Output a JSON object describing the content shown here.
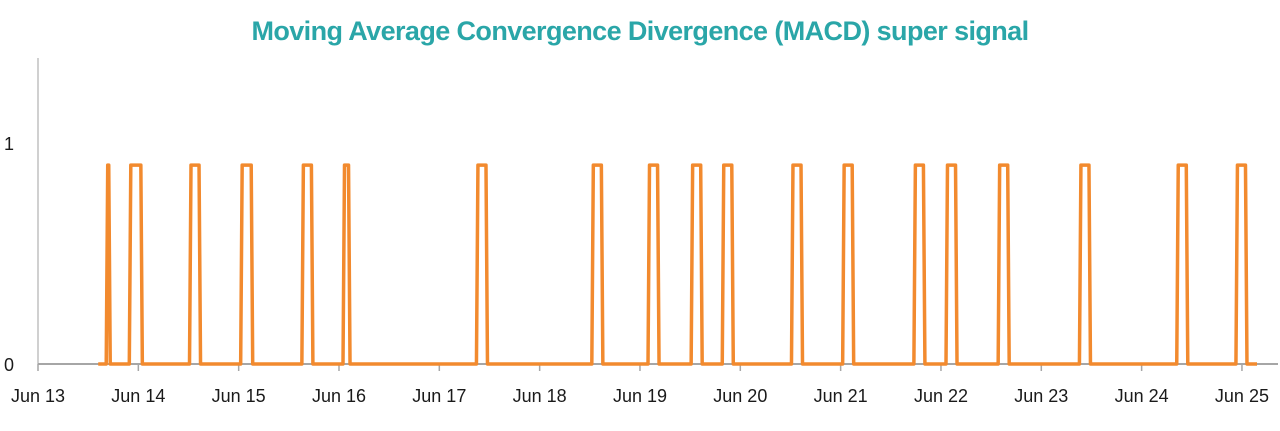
{
  "chart_data": {
    "type": "line",
    "title": "Moving Average Convergence Divergence (MACD) super signal",
    "xlabel": "",
    "ylabel": "",
    "x_tick_labels": [
      "Jun 13",
      "Jun 14",
      "Jun 15",
      "Jun 16",
      "Jun 17",
      "Jun 18",
      "Jun 19",
      "Jun 20",
      "Jun 21",
      "Jun 22",
      "Jun 23",
      "Jun 24",
      "Jun 25"
    ],
    "y_tick_labels": [
      "0",
      "1"
    ],
    "ylim": [
      0,
      1.4
    ],
    "xlim_days": [
      13,
      25.3
    ],
    "legend": "none",
    "grid": false,
    "series": [
      {
        "color": "#f28a2e",
        "pulses": [
          {
            "start": 13.68,
            "end": 13.72,
            "value": 0.9
          },
          {
            "start": 13.91,
            "end": 14.04,
            "value": 0.9
          },
          {
            "start": 14.51,
            "end": 14.62,
            "value": 0.9
          },
          {
            "start": 15.02,
            "end": 15.14,
            "value": 0.9
          },
          {
            "start": 15.63,
            "end": 15.74,
            "value": 0.9
          },
          {
            "start": 16.04,
            "end": 16.11,
            "value": 0.9
          },
          {
            "start": 17.37,
            "end": 17.48,
            "value": 0.9
          },
          {
            "start": 18.52,
            "end": 18.63,
            "value": 0.9
          },
          {
            "start": 19.08,
            "end": 19.19,
            "value": 0.9
          },
          {
            "start": 19.51,
            "end": 19.62,
            "value": 0.9
          },
          {
            "start": 19.82,
            "end": 19.93,
            "value": 0.9
          },
          {
            "start": 20.51,
            "end": 20.62,
            "value": 0.9
          },
          {
            "start": 21.02,
            "end": 21.13,
            "value": 0.9
          },
          {
            "start": 21.73,
            "end": 21.84,
            "value": 0.9
          },
          {
            "start": 22.05,
            "end": 22.16,
            "value": 0.9
          },
          {
            "start": 22.57,
            "end": 22.68,
            "value": 0.9
          },
          {
            "start": 23.38,
            "end": 23.49,
            "value": 0.9
          },
          {
            "start": 24.35,
            "end": 24.46,
            "value": 0.9
          },
          {
            "start": 24.94,
            "end": 25.05,
            "value": 0.9
          }
        ]
      }
    ]
  }
}
